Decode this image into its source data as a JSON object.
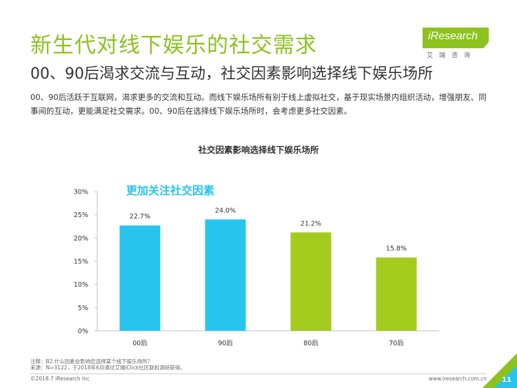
{
  "header": {
    "title": "新生代对线下娱乐的社交需求",
    "subtitle": "00、90后渴求交流与互动，社交因素影响选择线下娱乐场所",
    "description": "00、90后活跃于互联网，渴求更多的交流和互动。而线下娱乐场所有别于线上虚拟社交，基于现实场景内组织活动，增强朋友、同事间的互动，更能满足社交需求。00、90后在选择线下娱乐场所时，会考虑更多社交因素。"
  },
  "logo": {
    "name": "iResearch",
    "sub": "艾瑞咨询"
  },
  "chart_data": {
    "type": "bar",
    "title": "社交因素影响选择线下娱乐场所",
    "annotation": "更加关注社交因素",
    "categories": [
      "00后",
      "90后",
      "80后",
      "70后"
    ],
    "values": [
      22.7,
      24.0,
      21.2,
      15.8
    ],
    "value_labels": [
      "22.7%",
      "24.0%",
      "21.2%",
      "15.8%"
    ],
    "bar_colors": [
      "#27c4ee",
      "#27c4ee",
      "#a4cc1f",
      "#a4cc1f"
    ],
    "ylim": [
      0,
      30
    ],
    "yticks": [
      0,
      5,
      10,
      15,
      20,
      25,
      30
    ],
    "ytick_labels": [
      "0%",
      "5%",
      "10%",
      "15%",
      "20%",
      "25%",
      "30%"
    ],
    "grid": false,
    "annotation_color": "#27c4ee"
  },
  "footer": {
    "note": "注释：B2.什么因素会影响您选择某个线下娱乐场所？",
    "source": "来源：N=3122，于2018年6月通过艾瑞iClick社区联机调研获得。",
    "copyright": "©2018.7 iResearch Inc",
    "url": "www.iresearch.com.cn",
    "page": "11"
  },
  "colors": {
    "accent_green": "#8dc21f",
    "accent_blue": "#27c4ee"
  }
}
